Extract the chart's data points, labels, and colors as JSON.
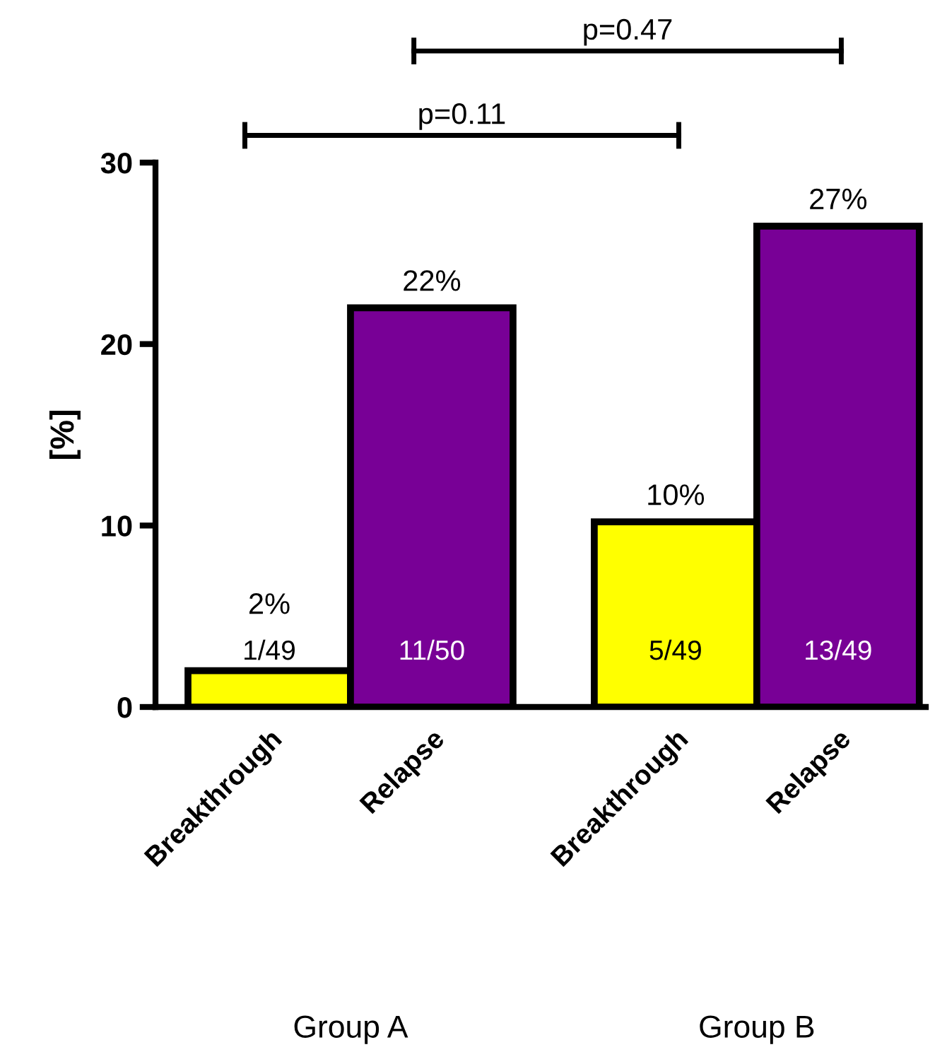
{
  "chart_data": {
    "type": "bar",
    "ylabel": "[%]",
    "categories": [
      "Breakthrough",
      "Relapse",
      "Breakthrough",
      "Relapse"
    ],
    "values": [
      2.0,
      22.0,
      10.2,
      26.5
    ],
    "colors": [
      "#ffff00",
      "#780096",
      "#ffff00",
      "#780096"
    ],
    "value_labels": [
      "2%",
      "22%",
      "10%",
      "27%"
    ],
    "ylim": [
      0,
      30
    ],
    "yticks": [
      0,
      10,
      20,
      30
    ],
    "grid": false,
    "legend": false,
    "annotations": [
      "1/49",
      "11/50",
      "5/49",
      "13/49",
      "Group A",
      "Group B",
      "p=0.11",
      "p=0.47"
    ]
  }
}
